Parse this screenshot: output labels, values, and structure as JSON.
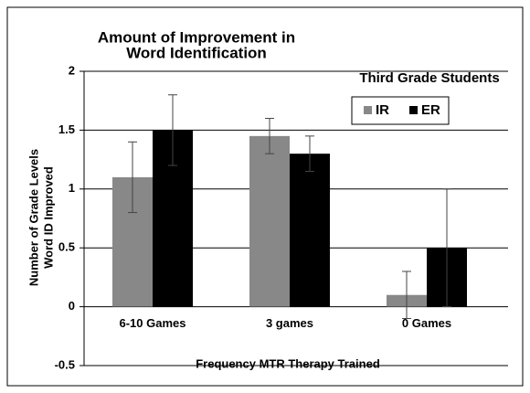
{
  "chart_data": {
    "type": "bar",
    "title": [
      "Amount of Improvement in",
      "Word Identification"
    ],
    "subtitle": "Third Grade Students",
    "y_label": [
      "Number of Grade Levels",
      "Word ID Improved"
    ],
    "x_label": "Frequency MTR Therapy Trained",
    "categories": [
      "6-10 Games",
      "3 games",
      "0 Games"
    ],
    "series": [
      {
        "name": "IR",
        "color": "#888888",
        "values": [
          1.1,
          1.45,
          0.1
        ],
        "errors": [
          0.3,
          0.15,
          0.2
        ]
      },
      {
        "name": "ER",
        "color": "#000000",
        "values": [
          1.5,
          1.3,
          0.5
        ],
        "errors": [
          0.3,
          0.15,
          0.5
        ]
      }
    ],
    "ylim": [
      -0.5,
      2
    ],
    "yticks": [
      -0.5,
      0,
      0.5,
      1,
      1.5,
      2
    ],
    "grid": true,
    "legend": "upper right"
  }
}
